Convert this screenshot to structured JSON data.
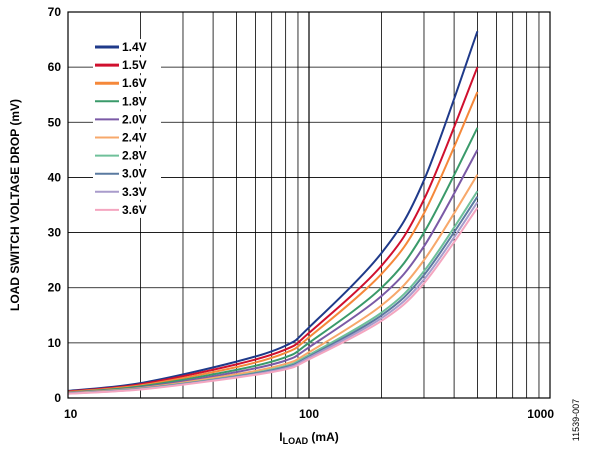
{
  "figure_id": "11539-007",
  "chart_data": {
    "type": "line",
    "title": "",
    "xlabel": {
      "main": "I",
      "sub": "LOAD",
      "unit": " (mA)"
    },
    "ylabel": "LOAD SWITCH VOLTAGE DROP (mV)",
    "x_scale": "log",
    "xlim": [
      10,
      1000
    ],
    "ylim": [
      0,
      70
    ],
    "x_ticks": [
      "10",
      "100",
      "1000"
    ],
    "y_ticks": [
      "0",
      "10",
      "20",
      "30",
      "40",
      "50",
      "60",
      "70"
    ],
    "grid": true,
    "legend_position": "top-left",
    "x": [
      10,
      20,
      50,
      80,
      100,
      200,
      300,
      500
    ],
    "series": [
      {
        "name": "1.4V",
        "color": "#1f3a8a",
        "values": [
          1.3,
          2.7,
          6.6,
          9.5,
          12.8,
          26.3,
          39.5,
          66.5
        ]
      },
      {
        "name": "1.5V",
        "color": "#d0102e",
        "values": [
          1.2,
          2.5,
          6.1,
          8.8,
          11.8,
          24.0,
          36.0,
          60.0
        ]
      },
      {
        "name": "1.6V",
        "color": "#f5883a",
        "values": [
          1.1,
          2.3,
          5.6,
          8.2,
          11.0,
          22.5,
          33.5,
          55.5
        ]
      },
      {
        "name": "1.8V",
        "color": "#3a9a6a",
        "values": [
          1.0,
          2.1,
          5.1,
          7.4,
          10.0,
          20.0,
          30.0,
          49.0
        ]
      },
      {
        "name": "2.0V",
        "color": "#7b5aa6",
        "values": [
          0.95,
          1.9,
          4.7,
          6.8,
          9.2,
          18.5,
          27.5,
          45.0
        ]
      },
      {
        "name": "2.4V",
        "color": "#f7a86b",
        "values": [
          0.9,
          1.8,
          4.3,
          6.2,
          8.3,
          16.8,
          25.0,
          40.5
        ]
      },
      {
        "name": "2.8V",
        "color": "#6fc09a",
        "values": [
          0.85,
          1.7,
          4.0,
          5.8,
          7.8,
          15.5,
          23.0,
          37.5
        ]
      },
      {
        "name": "3.0V",
        "color": "#5a7aa0",
        "values": [
          0.82,
          1.65,
          3.9,
          5.6,
          7.5,
          15.0,
          22.3,
          36.5
        ]
      },
      {
        "name": "3.3V",
        "color": "#a99ccc",
        "values": [
          0.8,
          1.6,
          3.8,
          5.4,
          7.3,
          14.5,
          21.5,
          35.5
        ]
      },
      {
        "name": "3.6V",
        "color": "#f4a6c0",
        "values": [
          0.78,
          1.55,
          3.7,
          5.2,
          7.0,
          14.0,
          20.8,
          34.5
        ]
      }
    ]
  }
}
